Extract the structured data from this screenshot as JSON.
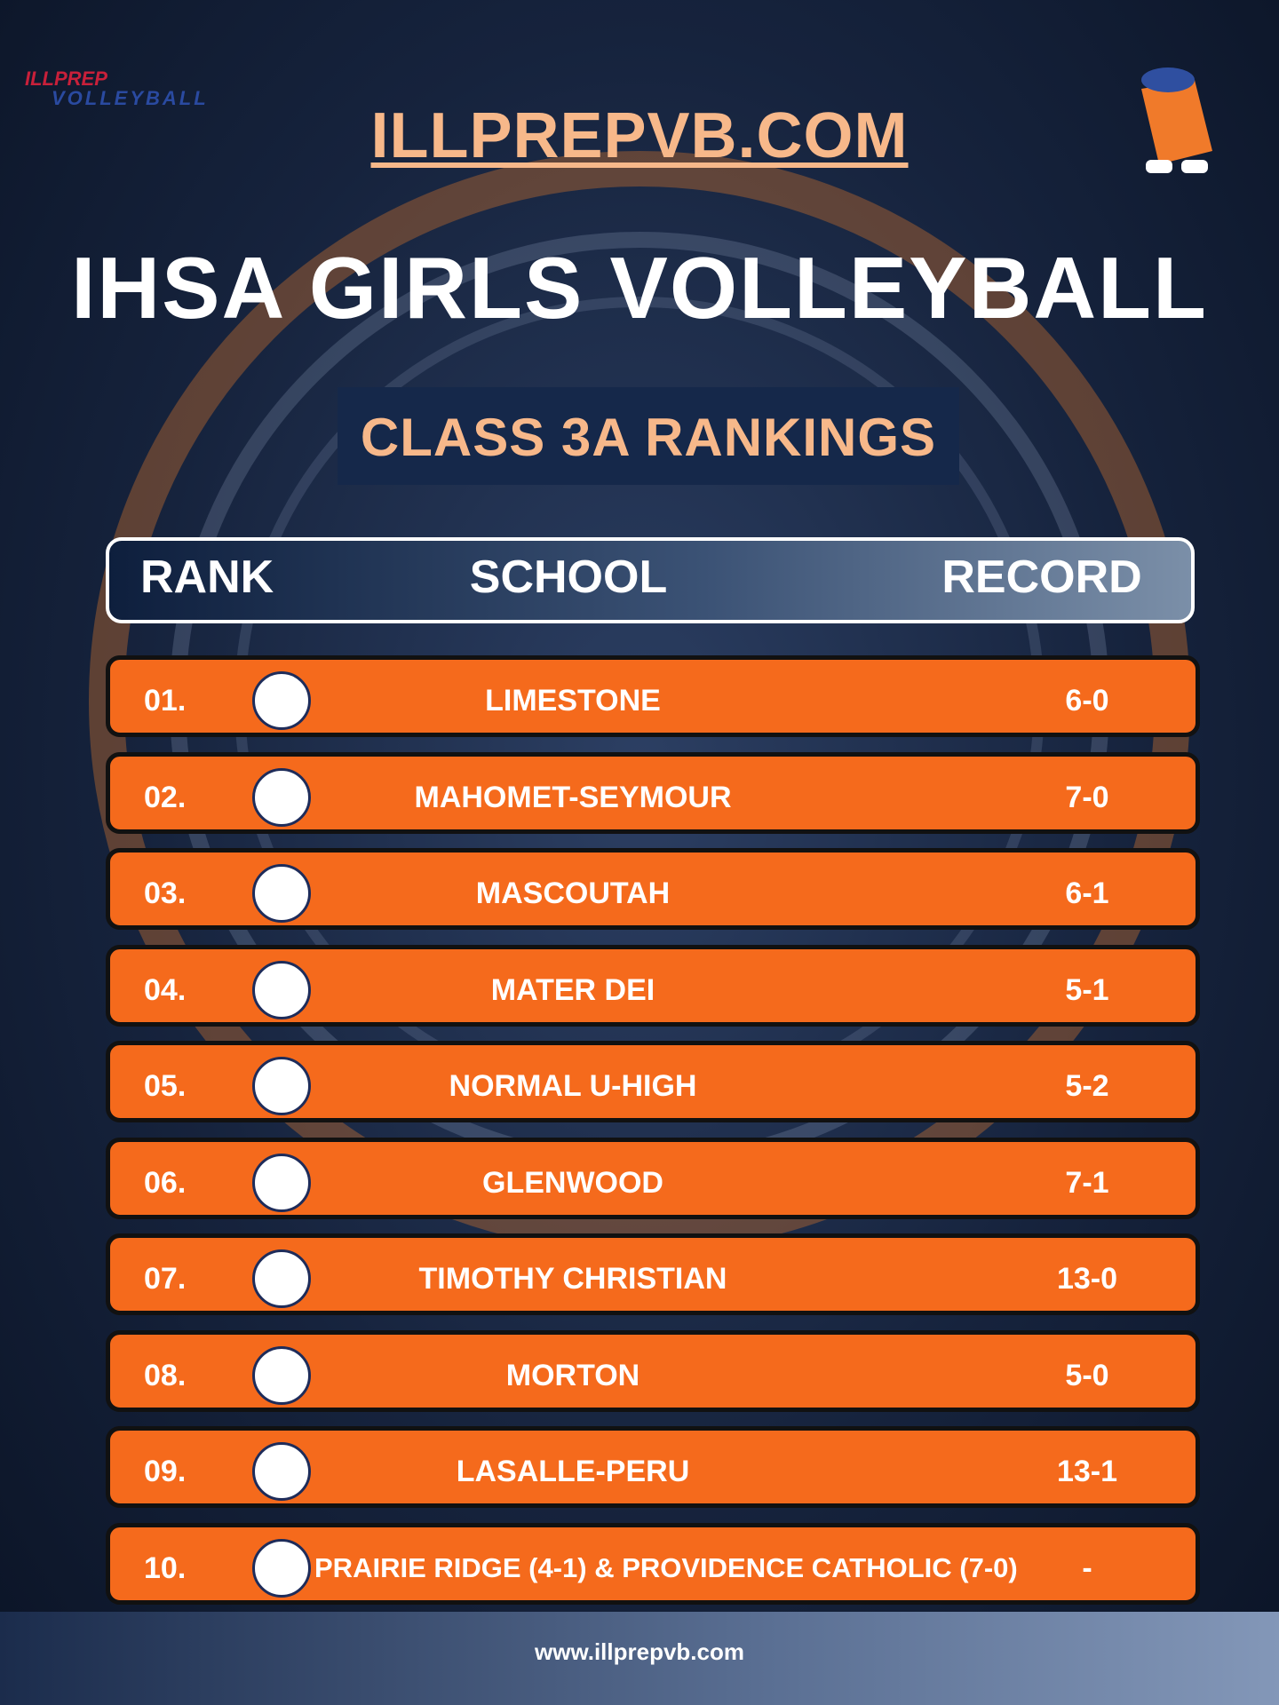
{
  "logo": {
    "line1": "ILLPREP",
    "line2": "VOLLEYBALL"
  },
  "site": "ILLPREPVB.COM",
  "title": "IHSA GIRLS VOLLEYBALL",
  "subtitle": "CLASS 3A RANKINGS",
  "table": {
    "columns": [
      "RANK",
      "SCHOOL",
      "RECORD"
    ],
    "rows": [
      [
        "01.",
        "LIMESTONE",
        "6-0"
      ],
      [
        "02.",
        "MAHOMET-SEYMOUR",
        "7-0"
      ],
      [
        "03.",
        "MASCOUTAH",
        "6-1"
      ],
      [
        "04.",
        "MATER DEI",
        "5-1"
      ],
      [
        "05.",
        "NORMAL U-HIGH",
        "5-2"
      ],
      [
        "06.",
        "GLENWOOD",
        "7-1"
      ],
      [
        "07.",
        "TIMOTHY CHRISTIAN",
        "13-0"
      ],
      [
        "08.",
        "MORTON",
        "5-0"
      ],
      [
        "09.",
        "LASALLE-PERU",
        "13-1"
      ],
      [
        "10.",
        "PRAIRIE RIDGE (4-1) & PROVIDENCE CATHOLIC (7-0)",
        "-"
      ]
    ]
  },
  "footer": "www.illprepvb.com"
}
